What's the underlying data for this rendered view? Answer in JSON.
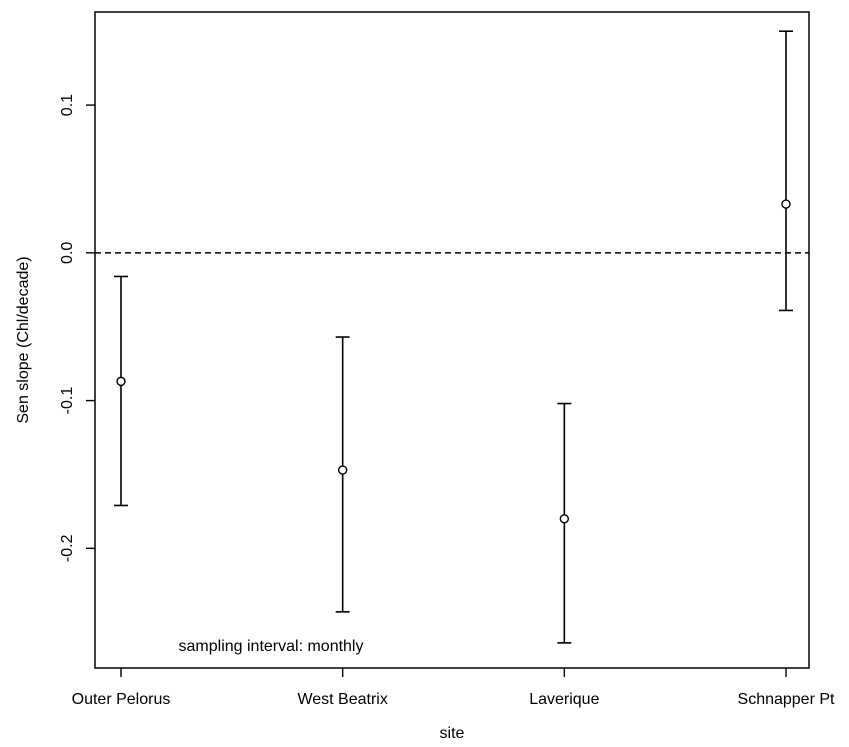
{
  "chart_data": {
    "type": "scatter",
    "subtype": "point-with-error-bars",
    "title": "",
    "xlabel": "site",
    "ylabel": "Sen slope (Chl/decade)",
    "categories": [
      "Outer Pelorus",
      "West Beatrix",
      "Laverique",
      "Schnapper Pt"
    ],
    "series": [
      {
        "estimate": [
          -0.087,
          -0.147,
          -0.18,
          0.033
        ],
        "lower": [
          -0.171,
          -0.243,
          -0.264,
          -0.039
        ],
        "upper": [
          -0.016,
          -0.057,
          -0.102,
          0.15
        ]
      }
    ],
    "ylim": [
      -0.281,
      0.163
    ],
    "yticks": [
      -0.2,
      -0.1,
      0.0,
      0.1
    ],
    "ytick_labels": [
      "-0.2",
      "-0.1",
      "0.0",
      "0.1"
    ],
    "reference_line": {
      "y": 0.0,
      "style": "dashed"
    },
    "annotation": "sampling interval: monthly",
    "grid": false,
    "colors": {
      "marks": "#000000",
      "background": "#ffffff"
    }
  }
}
